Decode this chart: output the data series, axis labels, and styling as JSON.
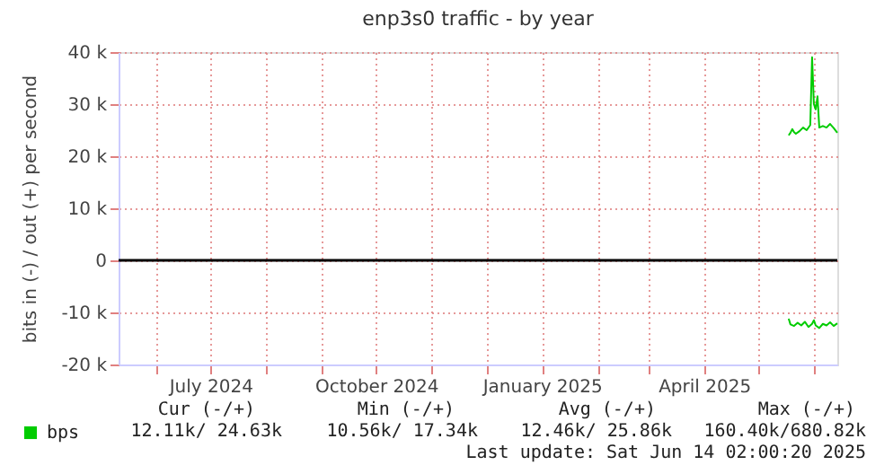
{
  "chart_data": {
    "type": "line",
    "title": "enp3s0 traffic - by year",
    "ylabel": "bits in (-) / out (+) per second",
    "x": [
      "2025-05-18",
      "2025-05-19",
      "2025-05-20",
      "2025-05-21",
      "2025-05-22",
      "2025-05-24",
      "2025-05-26",
      "2025-05-28",
      "2025-05-30",
      "2025-05-31",
      "2025-06-01",
      "2025-06-02",
      "2025-06-03",
      "2025-06-04",
      "2025-06-06",
      "2025-06-08",
      "2025-06-10",
      "2025-06-12",
      "2025-06-14"
    ],
    "series": [
      {
        "name": "bps",
        "color": "#00cc00",
        "values": [
          24000,
          24500,
          25200,
          24600,
          24300,
          24800,
          25500,
          25000,
          26000,
          39000,
          30000,
          29000,
          31500,
          25500,
          25800,
          25500,
          26200,
          25400,
          24500
        ]
      },
      {
        "color": "#00cc00",
        "x": [
          "2025-05-18",
          "2025-05-19",
          "2025-05-21",
          "2025-05-23",
          "2025-05-25",
          "2025-05-27",
          "2025-05-29",
          "2025-05-31",
          "2025-06-01",
          "2025-06-02",
          "2025-06-04",
          "2025-06-06",
          "2025-06-08",
          "2025-06-10",
          "2025-06-12",
          "2025-06-14"
        ],
        "values": [
          -11200,
          -12300,
          -12600,
          -12000,
          -12500,
          -11800,
          -12800,
          -12200,
          -11500,
          -12500,
          -13000,
          -12200,
          -12500,
          -11900,
          -12600,
          -12100
        ]
      }
    ],
    "xlim": [
      "2024-05-11",
      "2025-06-14"
    ],
    "xticks": [
      {
        "value": "2024-06-01",
        "label": null
      },
      {
        "value": "2024-07-01",
        "label": "July 2024"
      },
      {
        "value": "2024-08-01",
        "label": null
      },
      {
        "value": "2024-09-01",
        "label": null
      },
      {
        "value": "2024-10-01",
        "label": "October 2024"
      },
      {
        "value": "2024-11-01",
        "label": null
      },
      {
        "value": "2024-12-01",
        "label": null
      },
      {
        "value": "2025-01-01",
        "label": "January 2025"
      },
      {
        "value": "2025-02-01",
        "label": null
      },
      {
        "value": "2025-03-01",
        "label": null
      },
      {
        "value": "2025-04-01",
        "label": "April 2025"
      },
      {
        "value": "2025-05-01",
        "label": null
      },
      {
        "value": "2025-06-01",
        "label": null
      }
    ],
    "ylim": [
      -20000,
      40000
    ],
    "yticks": [
      {
        "value": -20000,
        "label": "-20 k"
      },
      {
        "value": -10000,
        "label": "-10 k"
      },
      {
        "value": 0,
        "label": "0"
      },
      {
        "value": 10000,
        "label": "10 k"
      },
      {
        "value": 20000,
        "label": "20 k"
      },
      {
        "value": 30000,
        "label": "30 k"
      },
      {
        "value": 40000,
        "label": "40 k"
      }
    ],
    "ref_lines": [
      {
        "axis": "y",
        "value": 0,
        "color": "#000000"
      }
    ],
    "grid": true,
    "legend": "bottom left",
    "marker": "none",
    "line_style": "solid",
    "annotations": [
      "Cur (-/+)",
      "Min (-/+)",
      "Avg (-/+)",
      "Max (-/+)",
      "12.11k/ 24.63k",
      "10.56k/ 17.34k",
      "12.46k/ 25.86k",
      "160.40k/680.82k",
      "Last update: Sat Jun 14 02:00:20 2025"
    ]
  }
}
